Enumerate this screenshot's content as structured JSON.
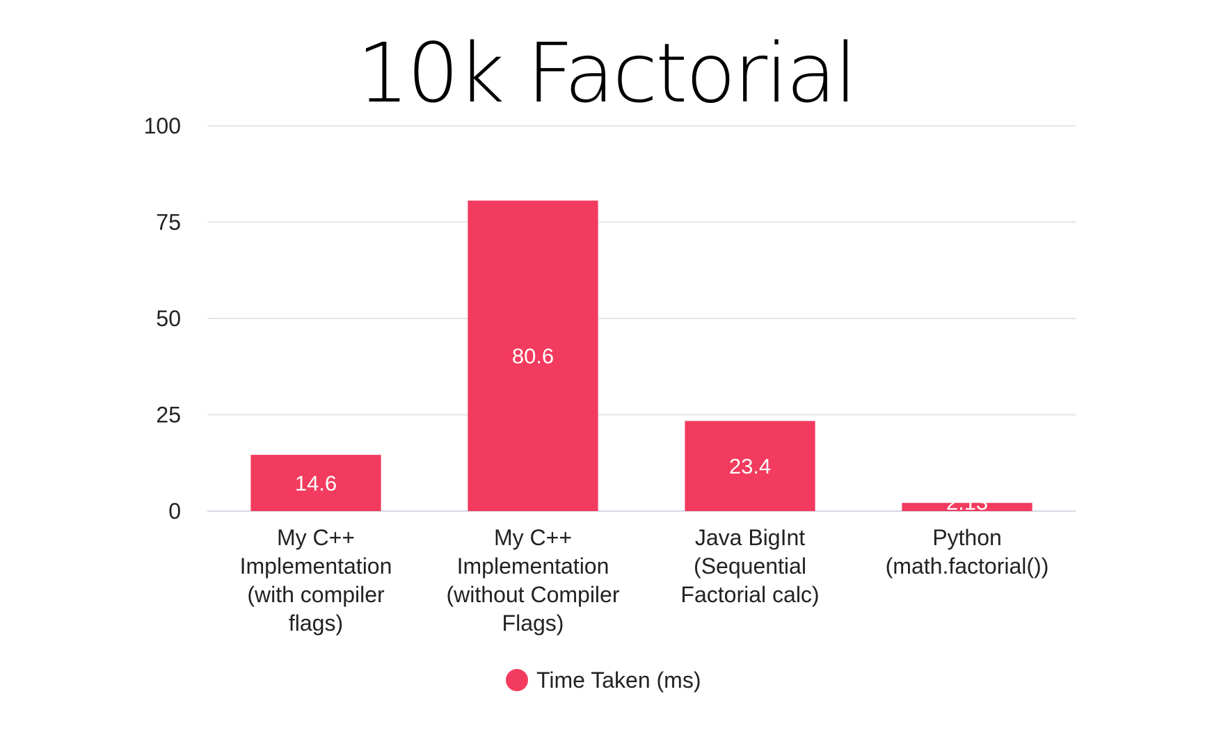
{
  "chart_data": {
    "type": "bar",
    "title": "10k Factorial",
    "categories": [
      [
        "My C++",
        "Implementation",
        "(with compiler",
        "flags)"
      ],
      [
        "My C++",
        "Implementation",
        "(without Compiler",
        "Flags)"
      ],
      [
        "Java BigInt",
        "(Sequential",
        "Factorial calc)"
      ],
      [
        "Python",
        "(math.factorial())"
      ]
    ],
    "series": [
      {
        "name": "Time Taken (ms)",
        "values": [
          14.6,
          80.6,
          23.4,
          2.13
        ],
        "labels": [
          "14.6",
          "80.6",
          "23.4",
          "2.13"
        ],
        "color": "#f23b5e"
      }
    ],
    "yticks": [
      "0",
      "25",
      "50",
      "75",
      "100"
    ],
    "ylim": [
      0,
      100
    ],
    "grid": true,
    "legend": "bottom-center"
  }
}
